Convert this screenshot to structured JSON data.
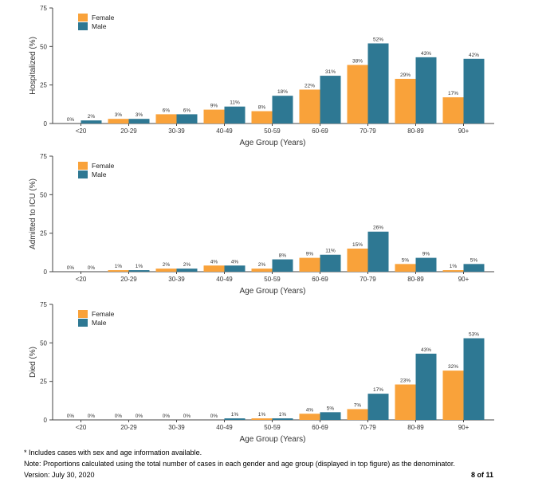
{
  "colors": {
    "female": "#F9A23A",
    "male": "#2E7893",
    "axis": "#444444"
  },
  "chart_data": [
    {
      "type": "bar",
      "ylabel": "Hospitalized (%)",
      "xlabel": "Age Group (Years)",
      "categories": [
        "<20",
        "20-29",
        "30-39",
        "40-49",
        "50-59",
        "60-69",
        "70-79",
        "80-89",
        "90+"
      ],
      "ylim": [
        0,
        75
      ],
      "yticks": [
        0,
        25,
        50,
        75
      ],
      "legend": "top-left",
      "series": [
        {
          "name": "Female",
          "values": [
            0,
            3,
            6,
            9,
            8,
            22,
            38,
            29,
            17
          ],
          "labels": [
            "0%",
            "3%",
            "6%",
            "9%",
            "8%",
            "22%",
            "38%",
            "29%",
            "17%"
          ]
        },
        {
          "name": "Male",
          "values": [
            2,
            3,
            6,
            11,
            18,
            31,
            52,
            43,
            42
          ],
          "labels": [
            "2%",
            "3%",
            "6%",
            "11%",
            "18%",
            "31%",
            "52%",
            "43%",
            "42%"
          ]
        }
      ]
    },
    {
      "type": "bar",
      "ylabel": "Admitted to ICU (%)",
      "xlabel": "Age Group (Years)",
      "categories": [
        "<20",
        "20-29",
        "30-39",
        "40-49",
        "50-59",
        "60-69",
        "70-79",
        "80-89",
        "90+"
      ],
      "ylim": [
        0,
        75
      ],
      "yticks": [
        0,
        25,
        50,
        75
      ],
      "legend": "top-left",
      "series": [
        {
          "name": "Female",
          "values": [
            0,
            1,
            2,
            4,
            2,
            9,
            15,
            5,
            1
          ],
          "labels": [
            "0%",
            "1%",
            "2%",
            "4%",
            "2%",
            "9%",
            "15%",
            "5%",
            "1%"
          ]
        },
        {
          "name": "Male",
          "values": [
            0,
            1,
            2,
            4,
            8,
            11,
            26,
            9,
            5
          ],
          "labels": [
            "0%",
            "1%",
            "2%",
            "4%",
            "8%",
            "11%",
            "26%",
            "9%",
            "5%"
          ]
        }
      ]
    },
    {
      "type": "bar",
      "ylabel": "Died (%)",
      "xlabel": "Age Group (Years)",
      "categories": [
        "<20",
        "20-29",
        "30-39",
        "40-49",
        "50-59",
        "60-69",
        "70-79",
        "80-89",
        "90+"
      ],
      "ylim": [
        0,
        75
      ],
      "yticks": [
        0,
        25,
        50,
        75
      ],
      "legend": "top-left",
      "series": [
        {
          "name": "Female",
          "values": [
            0,
            0,
            0,
            0,
            1,
            4,
            7,
            23,
            32
          ],
          "labels": [
            "0%",
            "0%",
            "0%",
            "0%",
            "1%",
            "4%",
            "7%",
            "23%",
            "32%"
          ]
        },
        {
          "name": "Male",
          "values": [
            0,
            0,
            0,
            1,
            1,
            5,
            17,
            43,
            53
          ],
          "labels": [
            "0%",
            "0%",
            "0%",
            "1%",
            "1%",
            "5%",
            "17%",
            "43%",
            "53%"
          ]
        }
      ]
    }
  ],
  "footer": {
    "note1": "* Includes cases with sex and age information available.",
    "note2": "Note: Proportions calculated using the total number of cases in each gender and age group (displayed in top figure) as the denominator.",
    "version": "Version: July 30, 2020",
    "page": "8 of 11"
  }
}
